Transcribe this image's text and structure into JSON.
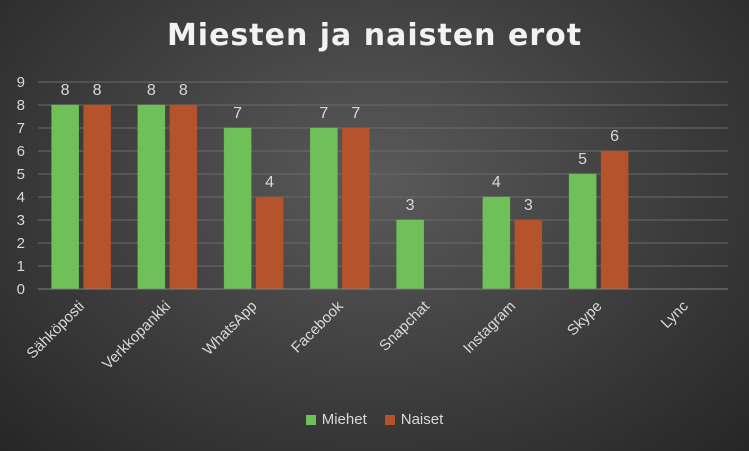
{
  "chart_data": {
    "type": "bar",
    "title": "Miesten ja naisten erot",
    "categories": [
      "Sähköposti",
      "Verkkopankki",
      "WhatsApp",
      "Facebook",
      "Snapchat",
      "Instagram",
      "Skype",
      "Lync"
    ],
    "series": [
      {
        "name": "Miehet",
        "values": [
          8,
          8,
          7,
          7,
          3,
          4,
          5,
          0
        ],
        "color": "#70c05a"
      },
      {
        "name": "Naiset",
        "values": [
          8,
          8,
          4,
          7,
          0,
          3,
          6,
          0
        ],
        "color": "#b5532d"
      }
    ],
    "data_labels": [
      [
        "8",
        "8",
        "7",
        "7",
        "3",
        "4",
        "5",
        ""
      ],
      [
        "8",
        "8",
        "4",
        "7",
        "",
        "3",
        "6",
        ""
      ]
    ],
    "ylim": [
      0,
      9
    ],
    "yticks": [
      0,
      1,
      2,
      3,
      4,
      5,
      6,
      7,
      8,
      9
    ],
    "grid": true,
    "legend": "bottom",
    "colors": {
      "text": "#d9d9d9",
      "grid": "#6b6b6b"
    }
  }
}
